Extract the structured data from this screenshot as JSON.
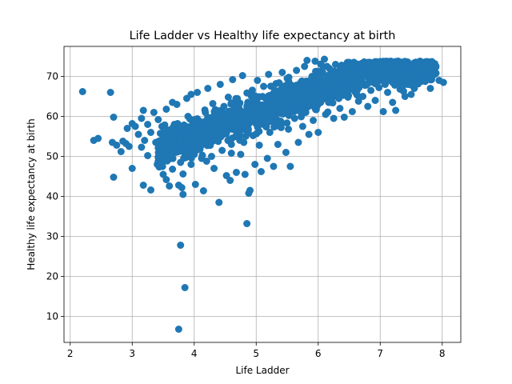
{
  "chart_data": {
    "type": "scatter",
    "title": "Life Ladder vs Healthy life expectancy at birth",
    "xlabel": "Life Ladder",
    "ylabel": "Healthy life expectancy at birth",
    "xlim": [
      1.9,
      8.3
    ],
    "ylim": [
      3.5,
      77.5
    ],
    "xticks": [
      2,
      3,
      4,
      5,
      6,
      7,
      8
    ],
    "yticks": [
      10,
      20,
      30,
      40,
      50,
      60,
      70
    ],
    "grid": true,
    "marker_color": "#1f77b4",
    "points": [
      [
        2.2,
        66.2
      ],
      [
        2.65,
        66.0
      ],
      [
        2.7,
        59.8
      ],
      [
        2.7,
        44.8
      ],
      [
        2.38,
        54.0
      ],
      [
        2.45,
        54.5
      ],
      [
        2.68,
        53.5
      ],
      [
        2.75,
        52.8
      ],
      [
        2.82,
        51.2
      ],
      [
        2.85,
        53.8
      ],
      [
        2.9,
        53.2
      ],
      [
        2.95,
        52.5
      ],
      [
        2.92,
        57.0
      ],
      [
        3.0,
        58.2
      ],
      [
        3.0,
        47.0
      ],
      [
        3.05,
        57.5
      ],
      [
        3.1,
        55.5
      ],
      [
        3.15,
        52.3
      ],
      [
        3.15,
        59.5
      ],
      [
        3.18,
        61.5
      ],
      [
        3.2,
        54.0
      ],
      [
        3.18,
        42.8
      ],
      [
        3.25,
        58.0
      ],
      [
        3.25,
        50.2
      ],
      [
        3.3,
        56.0
      ],
      [
        3.3,
        41.6
      ],
      [
        3.35,
        61.0
      ],
      [
        3.38,
        53.5
      ],
      [
        3.42,
        59.2
      ],
      [
        3.45,
        49.0
      ],
      [
        3.48,
        57.5
      ],
      [
        3.5,
        45.5
      ],
      [
        3.5,
        52.2
      ],
      [
        3.55,
        61.8
      ],
      [
        3.55,
        44.2
      ],
      [
        3.6,
        55.0
      ],
      [
        3.6,
        42.6
      ],
      [
        3.62,
        49.5
      ],
      [
        3.65,
        63.5
      ],
      [
        3.65,
        46.8
      ],
      [
        3.68,
        58.0
      ],
      [
        3.7,
        51.0
      ],
      [
        3.72,
        63.0
      ],
      [
        3.75,
        42.8
      ],
      [
        3.78,
        48.5
      ],
      [
        3.78,
        27.8
      ],
      [
        3.8,
        42.2
      ],
      [
        3.82,
        40.5
      ],
      [
        3.82,
        45.6
      ],
      [
        3.85,
        17.2
      ],
      [
        3.75,
        6.8
      ],
      [
        3.85,
        53.0
      ],
      [
        3.88,
        64.5
      ],
      [
        3.9,
        60.0
      ],
      [
        3.92,
        57.2
      ],
      [
        3.95,
        65.5
      ],
      [
        3.95,
        48.0
      ],
      [
        3.98,
        55.2
      ],
      [
        4.02,
        43.0
      ],
      [
        4.05,
        66.0
      ],
      [
        4.08,
        52.2
      ],
      [
        4.12,
        49.5
      ],
      [
        4.15,
        41.4
      ],
      [
        4.18,
        61.0
      ],
      [
        4.2,
        57.0
      ],
      [
        4.22,
        67.0
      ],
      [
        4.25,
        54.0
      ],
      [
        4.28,
        50.0
      ],
      [
        4.3,
        63.2
      ],
      [
        4.32,
        47.0
      ],
      [
        4.35,
        59.5
      ],
      [
        4.38,
        55.5
      ],
      [
        4.4,
        38.5
      ],
      [
        4.42,
        68.0
      ],
      [
        4.45,
        51.5
      ],
      [
        4.48,
        62.5
      ],
      [
        4.5,
        57.8
      ],
      [
        4.52,
        45.2
      ],
      [
        4.55,
        64.8
      ],
      [
        4.58,
        44.0
      ],
      [
        4.6,
        53.0
      ],
      [
        4.62,
        69.2
      ],
      [
        4.65,
        59.2
      ],
      [
        4.68,
        46.0
      ],
      [
        4.7,
        56.5
      ],
      [
        4.72,
        62.2
      ],
      [
        4.75,
        50.5
      ],
      [
        4.78,
        70.2
      ],
      [
        4.8,
        53.5
      ],
      [
        4.82,
        45.5
      ],
      [
        4.85,
        33.2
      ],
      [
        4.88,
        40.8
      ],
      [
        4.9,
        41.5
      ],
      [
        4.9,
        60.5
      ],
      [
        4.92,
        66.0
      ],
      [
        4.95,
        55.2
      ],
      [
        4.98,
        48.0
      ],
      [
        5.0,
        63.0
      ],
      [
        5.02,
        69.0
      ],
      [
        5.05,
        52.8
      ],
      [
        5.08,
        46.2
      ],
      [
        5.1,
        58.8
      ],
      [
        5.12,
        67.5
      ],
      [
        5.15,
        61.2
      ],
      [
        5.18,
        49.5
      ],
      [
        5.2,
        70.5
      ],
      [
        5.22,
        56.0
      ],
      [
        5.25,
        64.0
      ],
      [
        5.28,
        47.5
      ],
      [
        5.3,
        60.0
      ],
      [
        5.32,
        68.2
      ],
      [
        5.35,
        53.0
      ],
      [
        5.38,
        66.5
      ],
      [
        5.4,
        58.0
      ],
      [
        5.42,
        71.0
      ],
      [
        5.45,
        62.5
      ],
      [
        5.48,
        51.0
      ],
      [
        5.5,
        69.5
      ],
      [
        5.52,
        56.8
      ],
      [
        5.55,
        47.5
      ],
      [
        5.58,
        64.8
      ],
      [
        5.6,
        67.5
      ],
      [
        5.62,
        59.5
      ],
      [
        5.65,
        71.5
      ],
      [
        5.68,
        53.5
      ],
      [
        5.7,
        63.0
      ],
      [
        5.72,
        68.5
      ],
      [
        5.75,
        57.5
      ],
      [
        5.78,
        72.5
      ],
      [
        5.8,
        61.0
      ],
      [
        5.82,
        74.0
      ],
      [
        5.85,
        55.5
      ],
      [
        5.88,
        66.0
      ],
      [
        5.9,
        70.0
      ],
      [
        5.92,
        59.0
      ],
      [
        5.95,
        73.8
      ],
      [
        5.98,
        62.5
      ],
      [
        6.0,
        56.0
      ],
      [
        6.02,
        68.0
      ],
      [
        6.05,
        71.2
      ],
      [
        6.08,
        64.5
      ],
      [
        6.1,
        74.3
      ],
      [
        6.12,
        60.5
      ],
      [
        6.15,
        67.0
      ],
      [
        6.18,
        72.0
      ],
      [
        6.2,
        63.5
      ],
      [
        6.22,
        69.8
      ],
      [
        6.25,
        59.5
      ],
      [
        6.28,
        73.0
      ],
      [
        6.3,
        66.2
      ],
      [
        6.32,
        70.5
      ],
      [
        6.35,
        62.0
      ],
      [
        6.38,
        72.8
      ],
      [
        6.4,
        67.5
      ],
      [
        6.42,
        59.8
      ],
      [
        6.45,
        71.0
      ],
      [
        6.48,
        64.8
      ],
      [
        6.5,
        73.5
      ],
      [
        6.52,
        68.2
      ],
      [
        6.55,
        61.2
      ],
      [
        6.58,
        70.8
      ],
      [
        6.6,
        66.0
      ],
      [
        6.62,
        72.2
      ],
      [
        6.65,
        63.8
      ],
      [
        6.68,
        69.0
      ],
      [
        6.7,
        71.8
      ],
      [
        6.72,
        65.0
      ],
      [
        6.75,
        67.8
      ],
      [
        6.78,
        72.0
      ],
      [
        6.8,
        62.5
      ],
      [
        6.82,
        70.0
      ],
      [
        6.85,
        66.5
      ],
      [
        6.88,
        68.8
      ],
      [
        6.9,
        71.5
      ],
      [
        6.92,
        64.0
      ],
      [
        6.95,
        69.5
      ],
      [
        6.98,
        67.2
      ],
      [
        7.0,
        72.5
      ],
      [
        7.02,
        70.2
      ],
      [
        7.05,
        61.2
      ],
      [
        7.08,
        68.0
      ],
      [
        7.1,
        71.8
      ],
      [
        7.12,
        66.0
      ],
      [
        7.15,
        69.0
      ],
      [
        7.18,
        72.2
      ],
      [
        7.2,
        63.5
      ],
      [
        7.22,
        70.5
      ],
      [
        7.25,
        61.5
      ],
      [
        7.28,
        68.5
      ],
      [
        7.3,
        71.0
      ],
      [
        7.32,
        66.8
      ],
      [
        7.35,
        72.5
      ],
      [
        7.38,
        69.8
      ],
      [
        7.4,
        65.0
      ],
      [
        7.42,
        71.5
      ],
      [
        7.45,
        68.0
      ],
      [
        7.48,
        72.0
      ],
      [
        7.5,
        65.5
      ],
      [
        7.52,
        70.8
      ],
      [
        7.55,
        67.0
      ],
      [
        7.58,
        72.3
      ],
      [
        7.6,
        69.5
      ],
      [
        7.62,
        71.0
      ],
      [
        7.65,
        72.0
      ],
      [
        7.68,
        70.0
      ],
      [
        7.7,
        71.8
      ],
      [
        7.72,
        69.2
      ],
      [
        7.75,
        72.2
      ],
      [
        7.8,
        70.5
      ],
      [
        7.85,
        71.5
      ],
      [
        7.9,
        70.8
      ],
      [
        7.95,
        69.0
      ],
      [
        8.02,
        68.5
      ],
      [
        4.1,
        58.5
      ],
      [
        4.3,
        53.8
      ],
      [
        4.55,
        60.8
      ],
      [
        4.75,
        58.2
      ],
      [
        4.95,
        62.0
      ],
      [
        5.15,
        64.5
      ],
      [
        5.35,
        61.8
      ],
      [
        5.55,
        65.0
      ],
      [
        5.75,
        66.5
      ],
      [
        5.95,
        67.2
      ],
      [
        6.15,
        65.8
      ],
      [
        6.35,
        69.0
      ],
      [
        6.55,
        70.0
      ],
      [
        4.0,
        50.5
      ],
      [
        4.2,
        48.8
      ],
      [
        4.4,
        55.8
      ],
      [
        4.6,
        50.8
      ]
    ]
  }
}
